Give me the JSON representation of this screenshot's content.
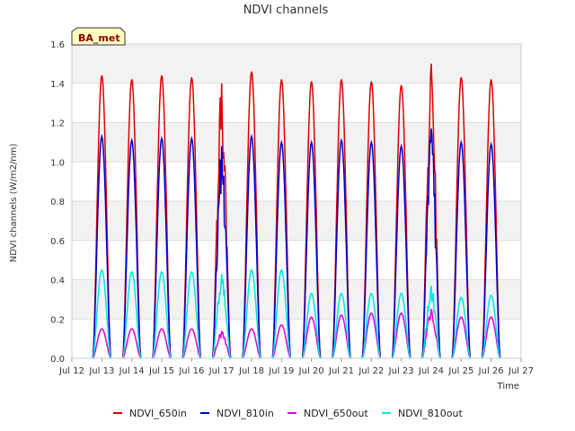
{
  "chart_data": {
    "type": "line",
    "title": "NDVI channels",
    "xlabel": "Time",
    "ylabel": "NDVI channels (W/m2/nm)",
    "badge": "BA_met",
    "ylim": [
      0.0,
      1.6
    ],
    "yticks": [
      "0.0",
      "0.2",
      "0.4",
      "0.6",
      "0.8",
      "1.0",
      "1.2",
      "1.4",
      "1.6"
    ],
    "xlim": [
      12.0,
      27.0
    ],
    "x_ticks": [
      12,
      13,
      14,
      15,
      16,
      17,
      18,
      19,
      20,
      21,
      22,
      23,
      24,
      25,
      26,
      27
    ],
    "x_tick_labels": [
      "Jul 12",
      "Jul 13",
      "Jul 14",
      "Jul 15",
      "Jul 16",
      "Jul 17",
      "Jul 18",
      "Jul 19",
      "Jul 20",
      "Jul 21",
      "Jul 22",
      "Jul 23",
      "Jul 24",
      "Jul 25",
      "Jul 26",
      "Jul 27"
    ],
    "grid": true,
    "legend_position": "bottom",
    "days": [
      13,
      14,
      15,
      16,
      17,
      18,
      19,
      20,
      21,
      22,
      23,
      24,
      25,
      26
    ],
    "series": [
      {
        "name": "NDVI_650in",
        "color": "#dd0000",
        "peaks": [
          1.44,
          1.42,
          1.44,
          1.43,
          1.4,
          1.46,
          1.42,
          1.41,
          1.42,
          1.41,
          1.39,
          1.5,
          1.43,
          1.42
        ]
      },
      {
        "name": "NDVI_810in",
        "color": "#0000cc",
        "peaks": [
          1.13,
          1.11,
          1.12,
          1.12,
          1.08,
          1.13,
          1.1,
          1.1,
          1.11,
          1.1,
          1.08,
          1.17,
          1.1,
          1.09
        ]
      },
      {
        "name": "NDVI_650out",
        "color": "#dd00dd",
        "peaks": [
          0.15,
          0.15,
          0.15,
          0.15,
          0.14,
          0.15,
          0.17,
          0.21,
          0.22,
          0.23,
          0.23,
          0.25,
          0.21,
          0.21
        ]
      },
      {
        "name": "NDVI_810out",
        "color": "#00e5e5",
        "peaks": [
          0.45,
          0.44,
          0.44,
          0.44,
          0.43,
          0.45,
          0.45,
          0.33,
          0.33,
          0.33,
          0.33,
          0.37,
          0.31,
          0.32
        ]
      }
    ]
  }
}
